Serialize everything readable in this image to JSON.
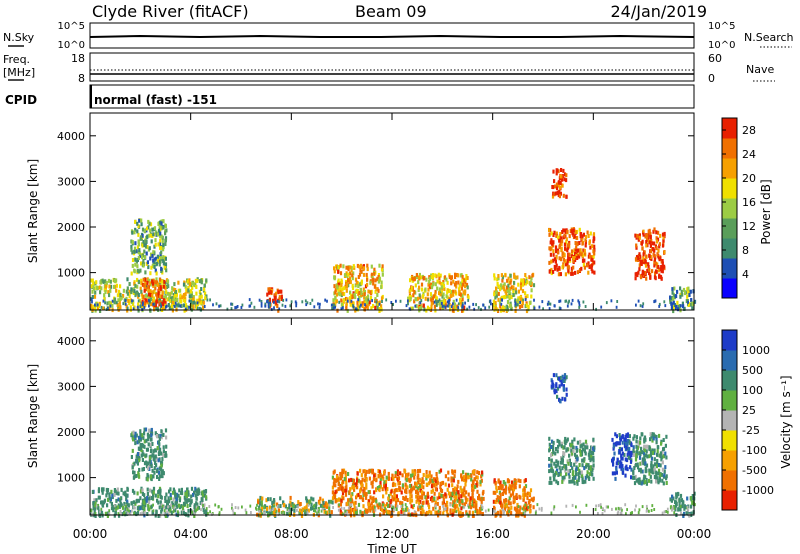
{
  "header": {
    "station": "Clyde River (fitACF)",
    "beam": "Beam 09",
    "date": "24/Jan/2019"
  },
  "status_panels": {
    "nsky_label": "N.Sky",
    "nsearch_label": "N.Search",
    "noise_ticks": [
      "10^5",
      "10^0"
    ],
    "freq_label_1": "Freq.",
    "freq_label_2": "[MHz]",
    "freq_ticks": [
      "18",
      "8"
    ],
    "nave_label": "Nave",
    "nave_ticks": [
      "60",
      "0"
    ],
    "cpid_label": "CPID",
    "cpid_value": "normal (fast) -151"
  },
  "chart_data": [
    {
      "type": "heatmap",
      "title": "",
      "ylabel": "Slant Range [km]",
      "xlabel": "Time UT",
      "xlim": [
        "00:00",
        "24:00"
      ],
      "ylim": [
        180,
        4500
      ],
      "x_ticks": [
        "00:00",
        "04:00",
        "08:00",
        "12:00",
        "16:00",
        "20:00",
        "00:00"
      ],
      "y_ticks": [
        1000,
        2000,
        3000,
        4000
      ],
      "colorbar": {
        "label": "Power [dB]",
        "ticks": [
          4,
          8,
          12,
          16,
          20,
          24,
          28
        ],
        "range": [
          0,
          30
        ],
        "colors": [
          "#0a00ff",
          "#1e4fb4",
          "#3e8a6e",
          "#5a9e5a",
          "#9ccc44",
          "#f0e000",
          "#f6a000",
          "#f07000",
          "#e82000"
        ]
      },
      "regions": [
        {
          "t": [
            0.0,
            4.6
          ],
          "range": [
            200,
            900
          ],
          "level": 16
        },
        {
          "t": [
            1.6,
            3.0
          ],
          "range": [
            1000,
            2200
          ],
          "level": 12
        },
        {
          "t": [
            2.0,
            3.0
          ],
          "range": [
            300,
            900
          ],
          "level": 26
        },
        {
          "t": [
            7.0,
            7.6
          ],
          "range": [
            200,
            700
          ],
          "level": 28
        },
        {
          "t": [
            9.6,
            11.6
          ],
          "range": [
            200,
            1200
          ],
          "level": 20
        },
        {
          "t": [
            12.6,
            15.0
          ],
          "range": [
            200,
            1000
          ],
          "level": 20
        },
        {
          "t": [
            16.0,
            17.6
          ],
          "range": [
            200,
            1000
          ],
          "level": 18
        },
        {
          "t": [
            18.3,
            18.9
          ],
          "range": [
            2700,
            3300
          ],
          "level": 28
        },
        {
          "t": [
            18.2,
            20.0
          ],
          "range": [
            1000,
            2000
          ],
          "level": 26
        },
        {
          "t": [
            21.6,
            22.8
          ],
          "range": [
            900,
            2000
          ],
          "level": 28
        },
        {
          "t": [
            23.0,
            24.0
          ],
          "range": [
            200,
            700
          ],
          "level": 12
        }
      ]
    },
    {
      "type": "heatmap",
      "title": "",
      "ylabel": "Slant Range [km]",
      "xlabel": "Time UT",
      "xlim": [
        "00:00",
        "24:00"
      ],
      "ylim": [
        180,
        4500
      ],
      "x_ticks": [
        "00:00",
        "04:00",
        "08:00",
        "12:00",
        "16:00",
        "20:00",
        "00:00"
      ],
      "y_ticks": [
        1000,
        2000,
        3000,
        4000
      ],
      "colorbar": {
        "label": "Velocity [m s⁻¹]",
        "ticks": [
          "1000",
          "500",
          "100",
          "25",
          "-25",
          "-100",
          "-500",
          "-1000"
        ],
        "colors": [
          "#1e3cc8",
          "#2a6cb0",
          "#3e8a6e",
          "#60b040",
          "#b4b4b4",
          "#f0e000",
          "#f6a000",
          "#f07000",
          "#e82000"
        ]
      },
      "regions": [
        {
          "t": [
            0.0,
            4.6
          ],
          "range": [
            200,
            800
          ],
          "class": "positive"
        },
        {
          "t": [
            1.6,
            3.0
          ],
          "range": [
            1000,
            2100
          ],
          "class": "positive"
        },
        {
          "t": [
            6.6,
            9.6
          ],
          "range": [
            200,
            600
          ],
          "class": "mixed"
        },
        {
          "t": [
            9.6,
            15.6
          ],
          "range": [
            200,
            1200
          ],
          "class": "negative"
        },
        {
          "t": [
            16.0,
            17.6
          ],
          "range": [
            200,
            1000
          ],
          "class": "negative"
        },
        {
          "t": [
            18.3,
            18.9
          ],
          "range": [
            2700,
            3300
          ],
          "class": "strong-positive"
        },
        {
          "t": [
            18.2,
            20.0
          ],
          "range": [
            900,
            1900
          ],
          "class": "positive"
        },
        {
          "t": [
            20.7,
            21.5
          ],
          "range": [
            1000,
            2000
          ],
          "class": "strong-positive"
        },
        {
          "t": [
            21.5,
            22.9
          ],
          "range": [
            900,
            2000
          ],
          "class": "positive"
        },
        {
          "t": [
            23.0,
            24.0
          ],
          "range": [
            200,
            700
          ],
          "class": "positive"
        }
      ]
    }
  ]
}
